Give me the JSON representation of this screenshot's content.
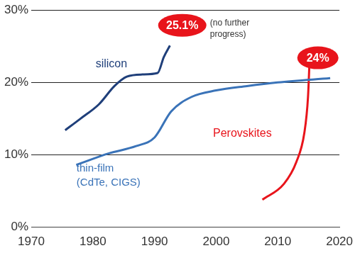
{
  "chart_data": {
    "type": "line",
    "series": [
      {
        "name": "silicon",
        "color": "#1f3f7a",
        "x": [
          1975.5,
          1978,
          1981,
          1983.5,
          1985.5,
          1988,
          1990.5,
          1991.5,
          1992.5
        ],
        "values": [
          13.4,
          15,
          17,
          19.5,
          20.8,
          21.1,
          21.3,
          23.5,
          25.1
        ]
      },
      {
        "name": "thin-film (CdTe, CIGS)",
        "color": "#3a73b8",
        "x": [
          1977.3,
          1982.6,
          1987,
          1990,
          1992.7,
          1996,
          2000,
          2005,
          2010,
          2018.5
        ],
        "values": [
          8.6,
          10.2,
          11.2,
          12.4,
          16,
          18,
          18.9,
          19.5,
          20,
          20.6
        ]
      },
      {
        "name": "Perovskites",
        "color": "#e8141b",
        "x": [
          2007.5,
          2011,
          2013,
          2014.3,
          2014.9,
          2015.2
        ],
        "values": [
          3.8,
          6,
          9,
          13,
          18,
          24.2
        ]
      }
    ],
    "annotations": [
      "25.1%",
      "(no further progress)",
      "24%"
    ],
    "xlim": [
      1970,
      2020
    ],
    "xticks": [
      1970,
      1980,
      1990,
      2000,
      2010,
      2020
    ],
    "ylim": [
      0,
      30
    ],
    "yticks": [
      {
        "value": 0,
        "label": "0%"
      },
      {
        "value": 10,
        "label": "10%"
      },
      {
        "value": 20,
        "label": "20%"
      },
      {
        "value": 30,
        "label": "30%"
      }
    ],
    "grid": true,
    "legend": false
  }
}
